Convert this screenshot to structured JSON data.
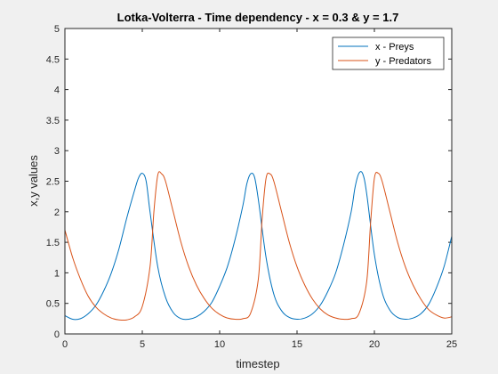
{
  "chart_data": {
    "type": "line",
    "title": "Lotka-Volterra - Time dependency - x = 0.3 & y = 1.7",
    "xlabel": "timestep",
    "ylabel": "x,y values",
    "xlim": [
      0,
      25
    ],
    "ylim": [
      0,
      5
    ],
    "xticks": [
      0,
      5,
      10,
      15,
      20,
      25
    ],
    "yticks": [
      0,
      0.5,
      1,
      1.5,
      2,
      2.5,
      3,
      3.5,
      4,
      4.5,
      5
    ],
    "grid": false,
    "legend_position": "top-right",
    "series": [
      {
        "name": "x - Preys",
        "color": "#0072BD",
        "x": [
          0,
          0.5,
          1,
          1.5,
          2,
          2.5,
          3,
          3.5,
          4,
          4.5,
          4.75,
          5,
          5.25,
          5.5,
          6,
          6.5,
          7,
          7.5,
          8,
          8.5,
          9,
          9.5,
          10,
          10.5,
          11,
          11.5,
          11.75,
          12,
          12.25,
          12.5,
          13,
          13.5,
          14,
          14.5,
          15,
          15.5,
          16,
          16.5,
          17,
          17.5,
          18,
          18.5,
          18.75,
          19,
          19.25,
          19.5,
          20,
          20.5,
          21,
          21.5,
          22,
          22.5,
          23,
          23.5,
          24,
          24.5,
          25
        ],
        "y": [
          0.3,
          0.24,
          0.25,
          0.33,
          0.47,
          0.7,
          1.0,
          1.4,
          1.9,
          2.35,
          2.55,
          2.63,
          2.5,
          2.0,
          1.1,
          0.6,
          0.35,
          0.25,
          0.24,
          0.28,
          0.37,
          0.52,
          0.78,
          1.1,
          1.55,
          2.1,
          2.45,
          2.62,
          2.57,
          2.2,
          1.25,
          0.65,
          0.38,
          0.27,
          0.24,
          0.26,
          0.33,
          0.47,
          0.7,
          1.0,
          1.45,
          2.0,
          2.4,
          2.63,
          2.62,
          2.3,
          1.3,
          0.68,
          0.39,
          0.27,
          0.24,
          0.26,
          0.33,
          0.48,
          0.75,
          1.1,
          1.6
        ]
      },
      {
        "name": "y - Predators",
        "color": "#D95319",
        "x": [
          0,
          0.5,
          1,
          1.5,
          2,
          2.5,
          3,
          3.5,
          4,
          4.5,
          5,
          5.5,
          5.75,
          6,
          6.25,
          6.5,
          7,
          7.5,
          8,
          8.5,
          9,
          9.5,
          10,
          10.5,
          11,
          11.5,
          12,
          12.5,
          12.75,
          13,
          13.25,
          13.5,
          14,
          14.5,
          15,
          15.5,
          16,
          16.5,
          17,
          17.5,
          18,
          18.5,
          19,
          19.5,
          19.75,
          20,
          20.25,
          20.5,
          21,
          21.5,
          22,
          22.5,
          23,
          23.5,
          24,
          24.5,
          25
        ],
        "y": [
          1.7,
          1.25,
          0.9,
          0.62,
          0.44,
          0.33,
          0.26,
          0.23,
          0.23,
          0.28,
          0.45,
          1.1,
          2.0,
          2.6,
          2.62,
          2.5,
          2.0,
          1.5,
          1.1,
          0.8,
          0.58,
          0.42,
          0.32,
          0.26,
          0.24,
          0.25,
          0.34,
          0.9,
          1.9,
          2.55,
          2.62,
          2.5,
          2.0,
          1.5,
          1.1,
          0.8,
          0.57,
          0.41,
          0.31,
          0.26,
          0.24,
          0.25,
          0.33,
          0.85,
          1.8,
          2.55,
          2.63,
          2.5,
          2.0,
          1.5,
          1.1,
          0.8,
          0.57,
          0.4,
          0.31,
          0.26,
          0.28
        ]
      }
    ]
  }
}
